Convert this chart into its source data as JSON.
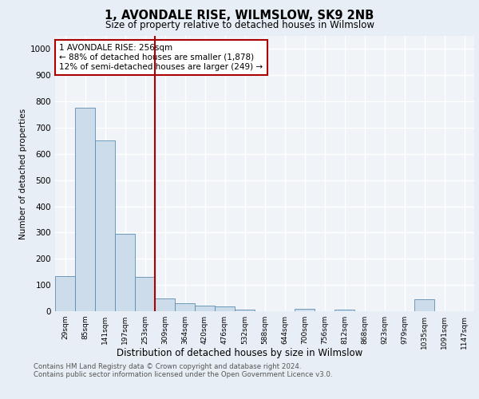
{
  "title": "1, AVONDALE RISE, WILMSLOW, SK9 2NB",
  "subtitle": "Size of property relative to detached houses in Wilmslow",
  "xlabel": "Distribution of detached houses by size in Wilmslow",
  "ylabel": "Number of detached properties",
  "categories": [
    "29sqm",
    "85sqm",
    "141sqm",
    "197sqm",
    "253sqm",
    "309sqm",
    "364sqm",
    "420sqm",
    "476sqm",
    "532sqm",
    "588sqm",
    "644sqm",
    "700sqm",
    "756sqm",
    "812sqm",
    "868sqm",
    "923sqm",
    "979sqm",
    "1035sqm",
    "1091sqm",
    "1147sqm"
  ],
  "values": [
    135,
    775,
    650,
    295,
    130,
    50,
    30,
    22,
    18,
    5,
    0,
    0,
    8,
    0,
    6,
    0,
    0,
    0,
    45,
    0,
    0
  ],
  "bar_color": "#cddcea",
  "bar_edge_color": "#5b8db0",
  "vline_x": 4.5,
  "vline_color": "#aa0000",
  "annotation_text": "1 AVONDALE RISE: 256sqm\n← 88% of detached houses are smaller (1,878)\n12% of semi-detached houses are larger (249) →",
  "annotation_box_color": "#aa0000",
  "ylim": [
    0,
    1050
  ],
  "yticks": [
    0,
    100,
    200,
    300,
    400,
    500,
    600,
    700,
    800,
    900,
    1000
  ],
  "bg_color": "#e8eef5",
  "plot_bg_color": "#f0f4f8",
  "grid_color": "#ffffff",
  "footer_line1": "Contains HM Land Registry data © Crown copyright and database right 2024.",
  "footer_line2": "Contains public sector information licensed under the Open Government Licence v3.0."
}
